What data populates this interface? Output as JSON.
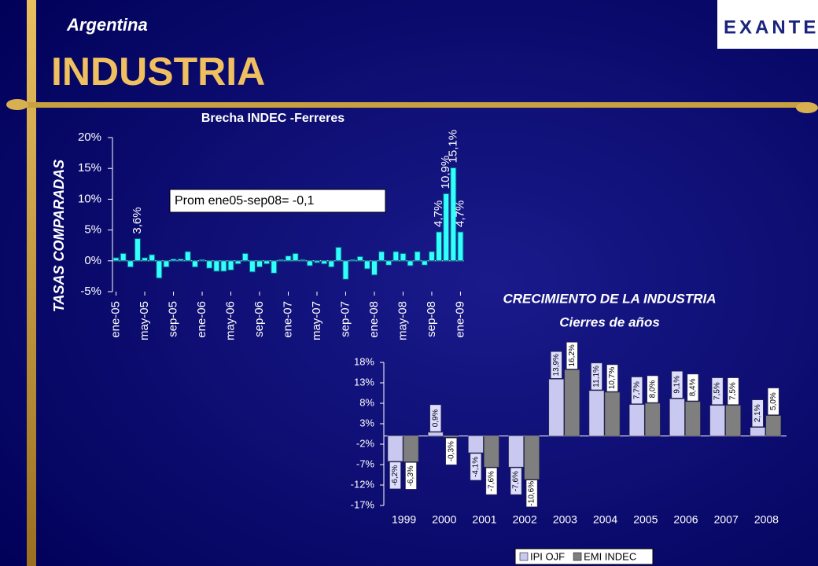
{
  "header": {
    "region": "Argentina",
    "title": "INDUSTRIA",
    "logo": "EXANTE"
  },
  "chart_data": [
    {
      "type": "bar",
      "title": "Brecha INDEC -Ferreres",
      "y_label": "TASAS COMPARADAS",
      "annotation": "Prom ene05-sep08= -0,1",
      "color": "#33ffff",
      "categories": [
        "ene-05",
        null,
        null,
        null,
        "may-05",
        null,
        null,
        null,
        "sep-05",
        null,
        null,
        null,
        "ene-06",
        null,
        null,
        null,
        "may-06",
        null,
        null,
        null,
        "sep-06",
        null,
        null,
        null,
        "ene-07",
        null,
        null,
        null,
        "may-07",
        null,
        null,
        null,
        "sep-07",
        null,
        null,
        null,
        "ene-08",
        null,
        null,
        null,
        "may-08",
        null,
        null,
        null,
        "sep-08",
        null,
        null,
        null,
        "ene-09"
      ],
      "values": [
        0.5,
        1.2,
        -1,
        3.6,
        0.5,
        1,
        -2.8,
        -1,
        0.3,
        0.3,
        1.5,
        -1,
        0.2,
        -1.2,
        -1.7,
        -1.7,
        -1.5,
        -0.5,
        1.2,
        -1.8,
        -1,
        -0.5,
        -2,
        0.2,
        0.8,
        1.2,
        0.2,
        -0.8,
        -0.3,
        -0.5,
        -1,
        2.2,
        -3,
        0.2,
        0.7,
        -1.3,
        -2.3,
        1.5,
        -0.7,
        1.5,
        1.2,
        -0.8,
        1.5,
        -0.7,
        1.5,
        4.7,
        10.9,
        15.1,
        4.7
      ],
      "value_labels": [
        null,
        null,
        null,
        "3,6%",
        null,
        null,
        null,
        null,
        null,
        null,
        null,
        null,
        null,
        null,
        null,
        null,
        null,
        null,
        null,
        null,
        null,
        null,
        null,
        null,
        null,
        null,
        null,
        null,
        null,
        null,
        null,
        null,
        null,
        null,
        null,
        null,
        null,
        null,
        null,
        null,
        null,
        null,
        null,
        null,
        null,
        "4,7%",
        "10,9%",
        "15,1%",
        "4,7%"
      ],
      "ylim": [
        -5,
        20
      ],
      "yticks": [
        {
          "value": -5,
          "label": "-5%"
        },
        {
          "value": 0,
          "label": "0%"
        },
        {
          "value": 5,
          "label": "5%"
        },
        {
          "value": 10,
          "label": "10%"
        },
        {
          "value": 15,
          "label": "15%"
        },
        {
          "value": 20,
          "label": "20%"
        }
      ]
    },
    {
      "type": "grouped-bar",
      "title": "CRECIMIENTO DE LA INDUSTRIA",
      "subtitle": "Cierres de años",
      "categories": [
        "1999",
        "2000",
        "2001",
        "2002",
        "2003",
        "2004",
        "2005",
        "2006",
        "2007",
        "2008"
      ],
      "series": [
        {
          "name": "IPI OJF",
          "color": "#c8c8f0",
          "values": [
            -6.2,
            0.9,
            -4.1,
            -7.6,
            13.9,
            11.1,
            7.7,
            9.1,
            7.5,
            2.1
          ],
          "value_labels": [
            "-6,2%",
            "0,9%",
            "-4,1%",
            "-7,6%",
            "13,9%",
            "11,1%",
            "7,7%",
            "9,1%",
            "7,5%",
            "2,1%"
          ]
        },
        {
          "name": "EMI INDEC",
          "color": "#7f7f7f",
          "values": [
            -6.3,
            -0.3,
            -7.6,
            -10.6,
            16.2,
            10.7,
            8.0,
            8.4,
            7.5,
            5.0
          ],
          "value_labels": [
            "-6,3%",
            "-0,3%",
            "-7,6%",
            "-10,6%",
            "16,2%",
            "10,7%",
            "8,0%",
            "8,4%",
            "7,5%",
            "5,0%"
          ]
        }
      ],
      "ylim": [
        -17,
        18
      ],
      "yticks": [
        {
          "value": -17,
          "label": "-17%"
        },
        {
          "value": -12,
          "label": "-12%"
        },
        {
          "value": -7,
          "label": "-7%"
        },
        {
          "value": -2,
          "label": "-2%"
        },
        {
          "value": 3,
          "label": "3%"
        },
        {
          "value": 8,
          "label": "8%"
        },
        {
          "value": 13,
          "label": "13%"
        },
        {
          "value": 18,
          "label": "18%"
        }
      ],
      "legend": "bottom"
    }
  ]
}
